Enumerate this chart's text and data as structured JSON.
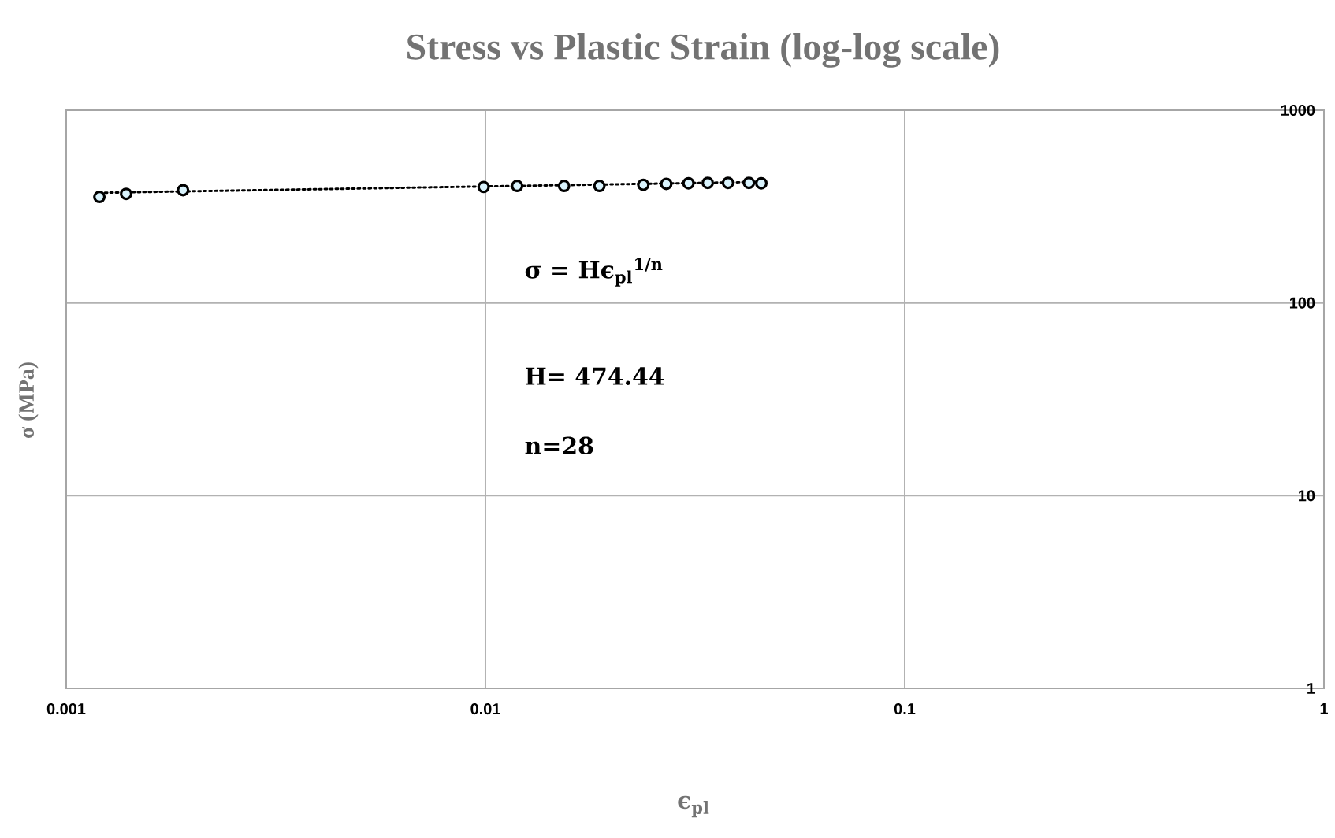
{
  "chart_data": {
    "type": "scatter",
    "title": "Stress vs Plastic Strain (log-log scale)",
    "xlabel": "ϵ$_{pl}$",
    "ylabel": "σ (MPa)",
    "log": "xy",
    "grid": true,
    "marker": "circle",
    "xlim": [
      0.001,
      1
    ],
    "ylim": [
      1,
      1000
    ],
    "xticks": [
      0.001,
      0.01,
      0.1,
      1
    ],
    "yticks": [
      1,
      10,
      100,
      1000
    ],
    "annotations": [
      "σ = Hϵ$_{pl}$$^{1/n}$",
      "H= 474.44",
      "n=28"
    ],
    "series": [
      {
        "color": "#000000",
        "x": [
          0.0012,
          0.00139,
          0.0019,
          0.0099,
          0.0119,
          0.0154,
          0.0187,
          0.0238,
          0.027,
          0.0305,
          0.0339,
          0.0379,
          0.0425,
          0.0455
        ],
        "values": [
          355,
          368,
          385,
          400,
          405,
          405,
          405,
          410,
          415,
          418,
          420,
          420,
          420,
          418
        ]
      },
      {
        "type": "line",
        "line_style": "dotted",
        "marker": "none",
        "color": "#000000",
        "x": [
          0.0012,
          0.0455
        ],
        "values": [
          373,
          425
        ]
      }
    ]
  }
}
